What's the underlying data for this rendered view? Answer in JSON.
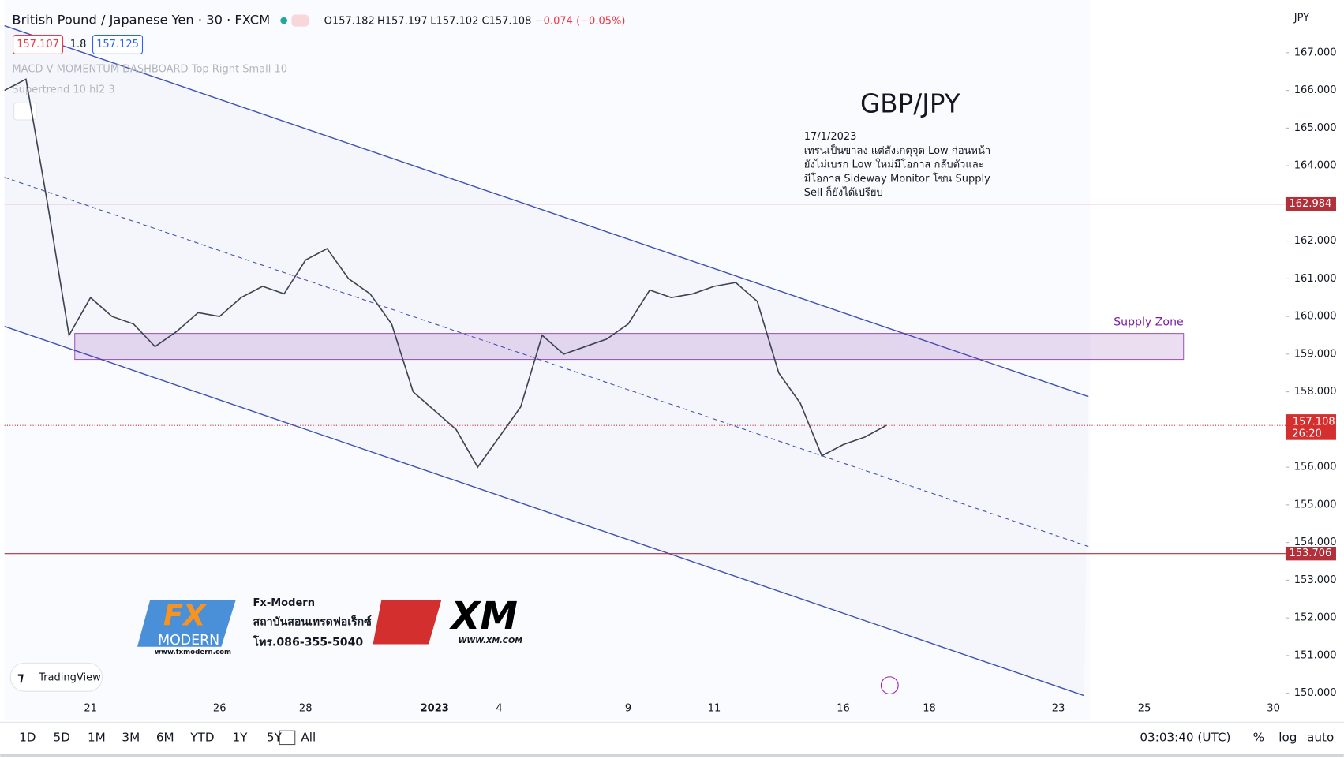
{
  "header": {
    "symbol": "British Pound / Japanese Yen · 30 · FXCM",
    "ohlc": [
      "O157.182",
      "H157.197",
      "L157.102",
      "C157.108"
    ],
    "change": "−0.074 (−0.05%)",
    "bid": "157.107",
    "spread": "1.8",
    "ask": "157.125",
    "indicators": [
      "MACD V MOMENTUM DASHBOARD Top Right Small 10",
      "Supertrend 10 hl2 3"
    ],
    "currency": "JPY"
  },
  "annotation": {
    "title": "GBP/JPY",
    "lines": [
      "17/1/2023",
      "เทรนเป็นขาลง แต่สังเกตุจุด Low ก่อนหน้า",
      "ยังไม่เบรก Low ใหม่มีโอกาส กลับตัวและ",
      "มีโอกาส Sideway Monitor โซน Supply",
      "Sell ก็ยังได้เปรียบ"
    ]
  },
  "logos": {
    "fx_name": "Fx-Modern",
    "fx_school": "สถาบันสอนเทรดฟอเร็กซ์",
    "fx_phone": "โทร.086-355-5040",
    "fx_site": "www.fxmodern.com",
    "fx_mark": "FX",
    "fx_sub": "MODERN",
    "xm": "XM",
    "xm_site": "WWW.XM.COM",
    "tradingview": "TradingView"
  },
  "toolbar": {
    "ranges": [
      "1D",
      "5D",
      "1M",
      "3M",
      "6M",
      "YTD",
      "1Y",
      "5Y",
      "All"
    ],
    "time": "03:03:40 (UTC)",
    "options": [
      "%",
      "log",
      "auto"
    ]
  },
  "chart_data": {
    "type": "line",
    "color": "#3d4351",
    "categories": [
      null,
      null,
      null,
      null,
      "21",
      null,
      null,
      null,
      null,
      null,
      "26",
      null,
      null,
      null,
      "28",
      null,
      null,
      null,
      null,
      null,
      "2023",
      null,
      null,
      "4",
      null,
      null,
      null,
      null,
      null,
      "9",
      null,
      null,
      null,
      "11",
      null,
      null,
      null,
      null,
      null,
      "16",
      null,
      null,
      null,
      "18",
      null,
      null,
      null,
      null,
      null,
      "23",
      null,
      null,
      null,
      "25",
      null,
      null,
      null,
      null,
      null,
      "30"
    ],
    "values": [
      166.0,
      166.3,
      163.0,
      159.5,
      160.5,
      160.0,
      159.8,
      159.2,
      159.6,
      160.1,
      160.0,
      160.5,
      160.8,
      160.6,
      161.5,
      161.8,
      161.0,
      160.6,
      159.8,
      158.0,
      157.5,
      157.0,
      156.0,
      156.8,
      157.6,
      159.5,
      159.0,
      159.2,
      159.4,
      159.8,
      160.7,
      160.5,
      160.6,
      160.8,
      160.9,
      160.4,
      158.5,
      157.7,
      156.3,
      156.6,
      156.8,
      157.108,
      null,
      null,
      null,
      null,
      null,
      null,
      null,
      null,
      null,
      null,
      null,
      null,
      null,
      null,
      null,
      null,
      null,
      null
    ],
    "ylim": [
      149.3,
      168.4
    ],
    "yticks": [
      {
        "value": 150,
        "label": "150.000"
      },
      {
        "value": 151,
        "label": "151.000"
      },
      {
        "value": 152,
        "label": "152.000"
      },
      {
        "value": 153,
        "label": "153.000"
      },
      {
        "value": 154,
        "label": "154.000"
      },
      {
        "value": 155,
        "label": "155.000"
      },
      {
        "value": 156,
        "label": "156.000"
      },
      {
        "value": 157,
        "label": "157.000"
      },
      {
        "value": 158,
        "label": "158.000"
      },
      {
        "value": 159,
        "label": "159.000"
      },
      {
        "value": 160,
        "label": "160.000"
      },
      {
        "value": 161,
        "label": "161.000"
      },
      {
        "value": 162,
        "label": "162.000"
      },
      {
        "value": 163,
        "label": "163.000"
      },
      {
        "value": 164,
        "label": "164.000"
      },
      {
        "value": 165,
        "label": "165.000"
      },
      {
        "value": 166,
        "label": "166.000"
      },
      {
        "value": 167,
        "label": "167.000"
      }
    ],
    "levels": [
      162.984,
      153.706
    ],
    "level_color": "#b2303a",
    "last_price": 157.108,
    "countdown": "26:20",
    "zone": {
      "label": "Supply Zone",
      "range": [
        158.86,
        159.55
      ],
      "color": "#7b1fa2"
    }
  }
}
